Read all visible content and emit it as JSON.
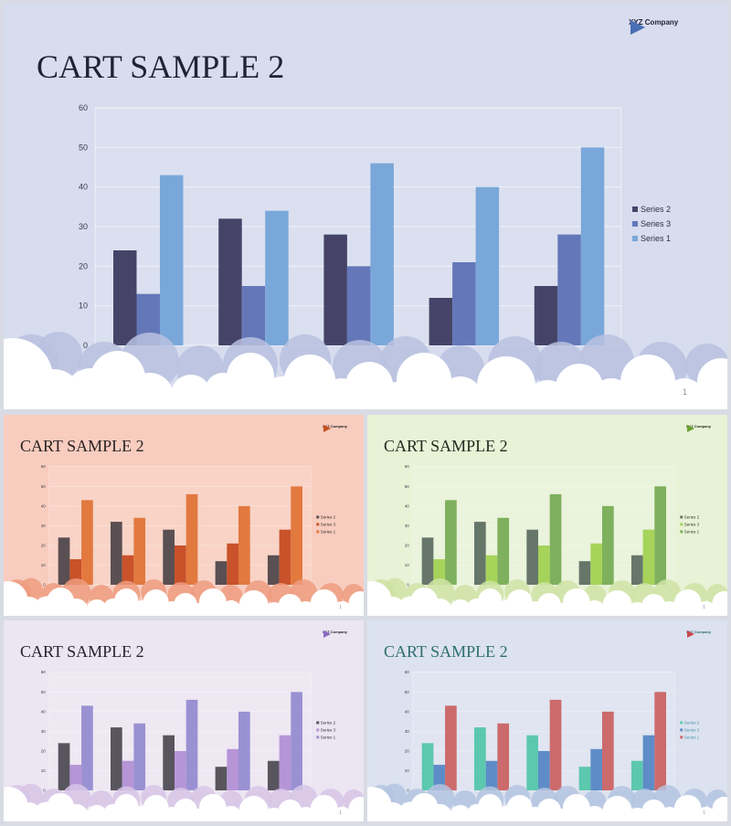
{
  "slides": [
    {
      "title": "CART SAMPLE 2",
      "company": "XYZ Company",
      "page_number": "1",
      "theme": {
        "background": "#d7dcee",
        "title_color": "#1f2233",
        "logo_color": "#4a6fb5",
        "cloud_back": "#b8c1df",
        "series_colors": [
          "#454468",
          "#6478b9",
          "#79a7d9"
        ],
        "legend_text": "#2e3245"
      }
    },
    {
      "title": "CART SAMPLE 2",
      "company": "XYZ Company",
      "page_number": "1",
      "theme": {
        "background": "#f8cdbf",
        "title_color": "#2a2323",
        "logo_color": "#c8511f",
        "cloud_back": "#ef9c7f",
        "series_colors": [
          "#5a4f52",
          "#c9522a",
          "#e2793f"
        ],
        "legend_text": "#3a2c2a"
      }
    },
    {
      "title": "CART SAMPLE 2",
      "company": "XYZ Company",
      "page_number": "1",
      "theme": {
        "background": "#e8f2d6",
        "title_color": "#232a20",
        "logo_color": "#6aa12e",
        "cloud_back": "#cfe3a6",
        "series_colors": [
          "#66776a",
          "#a6d35a",
          "#7eb05d"
        ],
        "legend_text": "#2f3a28"
      }
    },
    {
      "title": "CART SAMPLE 2",
      "company": "XYZ Company",
      "page_number": "1",
      "theme": {
        "background": "#ece5f2",
        "title_color": "#252230",
        "logo_color": "#8a6cc2",
        "cloud_back": "#d7c5e6",
        "series_colors": [
          "#58555e",
          "#b695d6",
          "#9a91d3"
        ],
        "legend_text": "#33303d"
      }
    },
    {
      "title": "CART SAMPLE 2",
      "company": "XYZ Company",
      "page_number": "1",
      "theme": {
        "background": "#dce2ef",
        "title_color": "#2d6f6f",
        "logo_color": "#c9494f",
        "cloud_back": "#b4c4e0",
        "series_colors": [
          "#5cc8ae",
          "#5e8cc7",
          "#cc6a6c"
        ],
        "legend_text": "#4a8fb0"
      }
    }
  ],
  "chart_data": {
    "type": "bar",
    "categories": [
      "",
      "",
      "",
      "",
      ""
    ],
    "series": [
      {
        "name": "Series 2",
        "values": [
          24,
          32,
          28,
          12,
          15
        ]
      },
      {
        "name": "Series 3",
        "values": [
          13,
          15,
          20,
          21,
          28
        ]
      },
      {
        "name": "Series 1",
        "values": [
          43,
          34,
          46,
          40,
          50
        ]
      }
    ],
    "ylim": [
      0,
      60
    ],
    "yticks": [
      "0",
      "10",
      "20",
      "30",
      "40",
      "50",
      "60"
    ],
    "legend_order": [
      "Series 2",
      "Series 3",
      "Series 1"
    ],
    "legend_position": "right",
    "grid": true,
    "xlabel": "",
    "ylabel": "",
    "title": ""
  }
}
